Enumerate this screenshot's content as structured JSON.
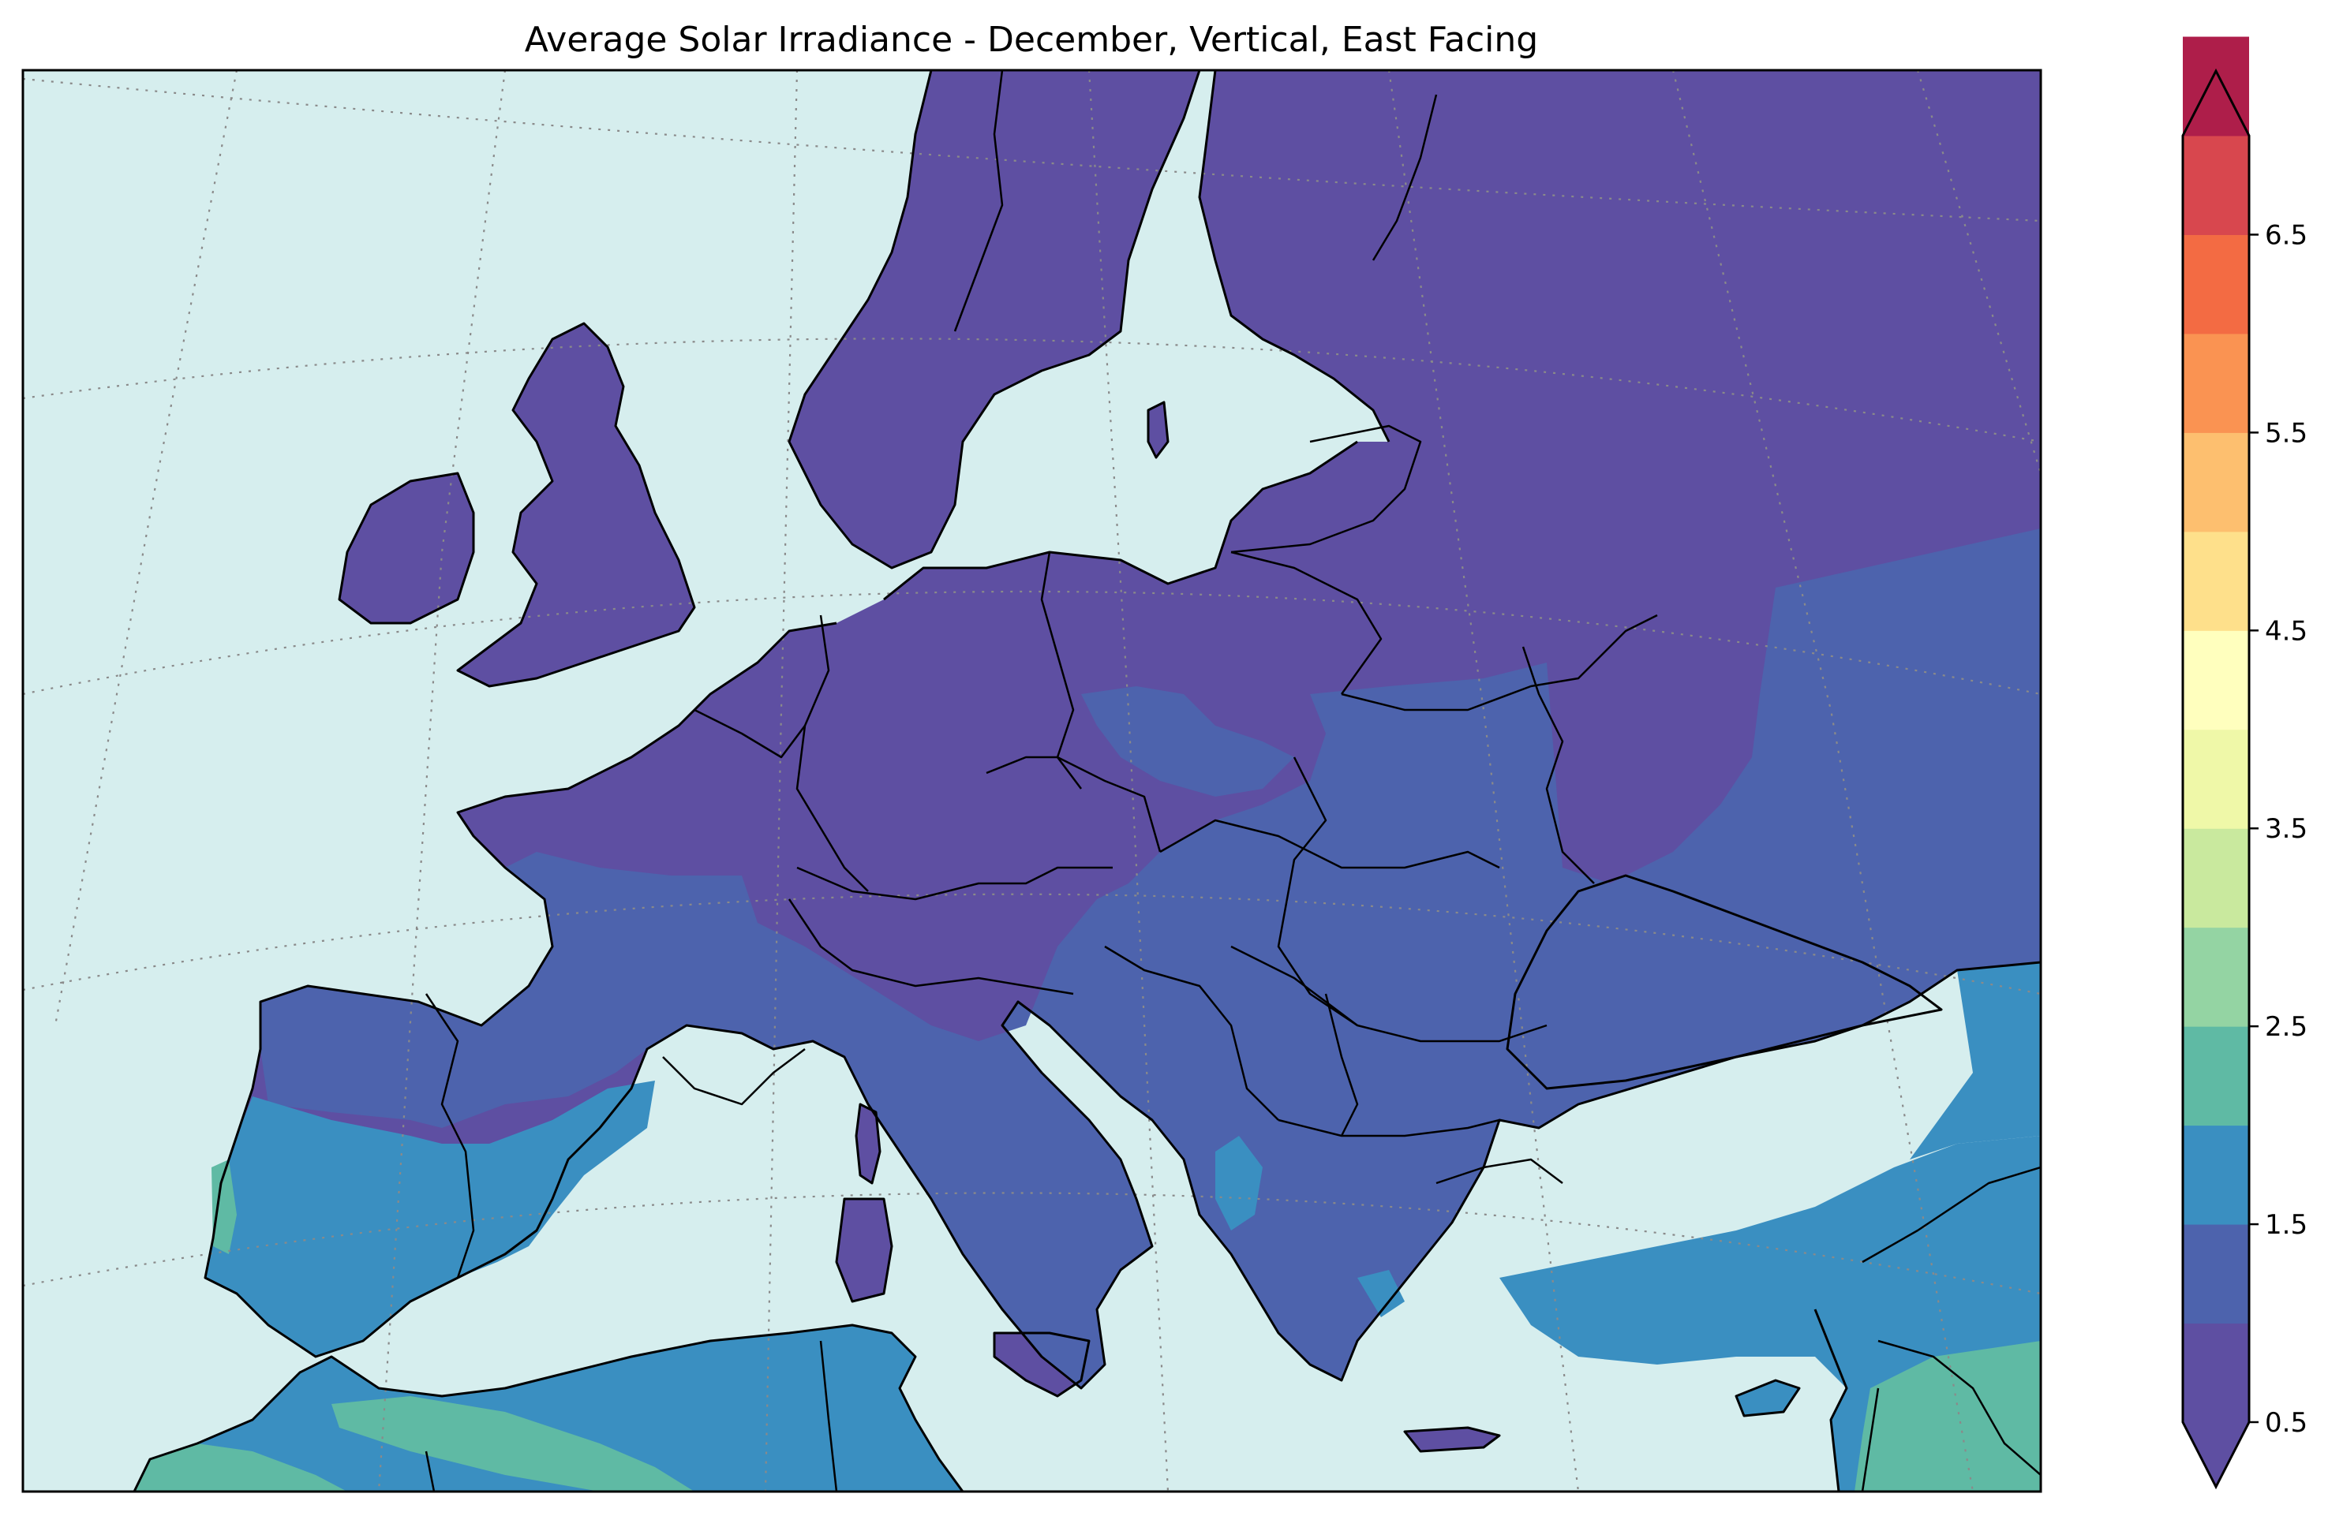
{
  "title": "Average Solar Irradiance - December, Vertical, East Facing",
  "colors": {
    "sea": "#d6eeee",
    "level_0_5_1_0": "#5e4fa2",
    "level_1_0_1_5": "#4d63ad",
    "level_1_5_2_0": "#3a8fc1",
    "level_2_0_2_5": "#5fbaa4",
    "level_2_5_3_0": "#94d4a3"
  },
  "colorbar": {
    "min": 0.5,
    "max": 7.0,
    "step": 0.5,
    "extend": "both",
    "tick_labels": [
      "0.5",
      "1.5",
      "2.5",
      "3.5",
      "4.5",
      "5.5",
      "6.5"
    ],
    "tick_values": [
      0.5,
      1.5,
      2.5,
      3.5,
      4.5,
      5.5,
      6.5
    ],
    "level_colors": [
      "#5e4fa2",
      "#4d63ad",
      "#3a8fc1",
      "#5fbaa4",
      "#94d4a3",
      "#c9e99e",
      "#eff8a8",
      "#ffffbe",
      "#fee08b",
      "#fdbf6f",
      "#fa9352",
      "#f36b43",
      "#d8474e",
      "#ae1e4a"
    ],
    "under_color": "#5e4fa2",
    "over_color": "#9e0142"
  }
}
